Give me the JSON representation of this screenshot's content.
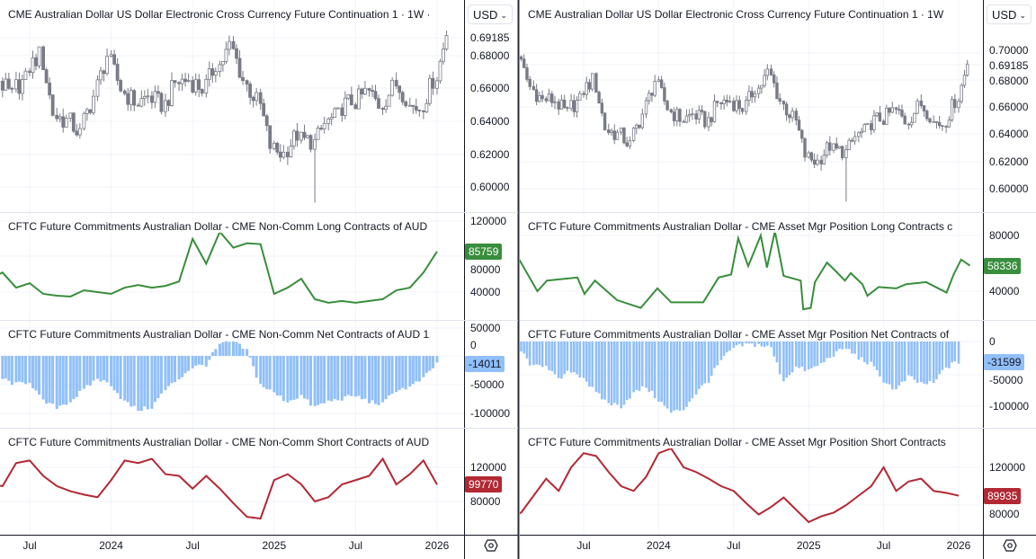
{
  "colors": {
    "candle": "#787b86",
    "long": "#388e3c",
    "net": "#90bff9",
    "short": "#b22833",
    "grid": "#f0f3fa"
  },
  "chart_data": [
    {
      "type": "candlestick+line+bar",
      "currency_button": "USD",
      "settings_icon": "gear-hexagon-icon",
      "time_labels": [
        {
          "label": "Jul",
          "date": "2023-07"
        },
        {
          "label": "2024",
          "date": "2024-01"
        },
        {
          "label": "Jul",
          "date": "2024-07"
        },
        {
          "label": "2025",
          "date": "2025-01"
        },
        {
          "label": "Jul",
          "date": "2025-07"
        },
        {
          "label": "2026",
          "date": "2026-01"
        }
      ],
      "price": {
        "title": "CME Australian Dollar US Dollar Electronic Cross Currency Future Continuation 1 · 1W ·",
        "ticks": [
          "0.69185",
          "0.68000",
          "0.66000",
          "0.64000",
          "0.62000",
          "0.60000"
        ],
        "last": 0.69185
      },
      "long": {
        "title": "CFTC Future Commitments Australian Dollar - CME Non-Comm Long Contracts of AUD",
        "ticks": [
          "120000",
          "80000",
          "40000"
        ],
        "last_label": "85759",
        "series": [
          [
            "2023-04",
            55000
          ],
          [
            "2023-05",
            62000
          ],
          [
            "2023-06",
            45000
          ],
          [
            "2023-07",
            50000
          ],
          [
            "2023-08",
            38000
          ],
          [
            "2023-09",
            36000
          ],
          [
            "2023-10",
            35000
          ],
          [
            "2023-11",
            42000
          ],
          [
            "2023-12",
            40000
          ],
          [
            "2024-01",
            38000
          ],
          [
            "2024-02",
            45000
          ],
          [
            "2024-03",
            48000
          ],
          [
            "2024-04",
            45000
          ],
          [
            "2024-05",
            47000
          ],
          [
            "2024-06",
            52000
          ],
          [
            "2024-07",
            100000
          ],
          [
            "2024-08",
            72000
          ],
          [
            "2024-09",
            108000
          ],
          [
            "2024-10",
            90000
          ],
          [
            "2024-11",
            95000
          ],
          [
            "2024-12",
            94000
          ],
          [
            "2025-01",
            38000
          ],
          [
            "2025-02",
            45000
          ],
          [
            "2025-03",
            55000
          ],
          [
            "2025-04",
            32000
          ],
          [
            "2025-05",
            28000
          ],
          [
            "2025-06",
            30000
          ],
          [
            "2025-07",
            28000
          ],
          [
            "2025-08",
            30000
          ],
          [
            "2025-09",
            32000
          ],
          [
            "2025-10",
            42000
          ],
          [
            "2025-11",
            45000
          ],
          [
            "2025-12",
            62000
          ],
          [
            "2026-01",
            85759
          ]
        ]
      },
      "net": {
        "title": "CFTC Future Commitments Australian Dollar - CME Non-Comm Net Contracts of AUD 1",
        "ticks": [
          "50000",
          "0",
          "-50000",
          "-100000"
        ],
        "last_label": "-14011",
        "series": [
          [
            "2023-04",
            -20000
          ],
          [
            "2023-05",
            -40000
          ],
          [
            "2023-06",
            -50000
          ],
          [
            "2023-07",
            -45000
          ],
          [
            "2023-08",
            -80000
          ],
          [
            "2023-09",
            -90000
          ],
          [
            "2023-10",
            -80000
          ],
          [
            "2023-11",
            -60000
          ],
          [
            "2023-12",
            -40000
          ],
          [
            "2024-01",
            -50000
          ],
          [
            "2024-02",
            -80000
          ],
          [
            "2024-03",
            -95000
          ],
          [
            "2024-04",
            -90000
          ],
          [
            "2024-05",
            -60000
          ],
          [
            "2024-06",
            -40000
          ],
          [
            "2024-07",
            -20000
          ],
          [
            "2024-08",
            -15000
          ],
          [
            "2024-09",
            20000
          ],
          [
            "2024-10",
            25000
          ],
          [
            "2024-11",
            10000
          ],
          [
            "2024-12",
            -50000
          ],
          [
            "2025-01",
            -65000
          ],
          [
            "2025-02",
            -80000
          ],
          [
            "2025-03",
            -70000
          ],
          [
            "2025-04",
            -90000
          ],
          [
            "2025-05",
            -80000
          ],
          [
            "2025-06",
            -75000
          ],
          [
            "2025-07",
            -70000
          ],
          [
            "2025-08",
            -80000
          ],
          [
            "2025-09",
            -85000
          ],
          [
            "2025-10",
            -60000
          ],
          [
            "2025-11",
            -55000
          ],
          [
            "2025-12",
            -40000
          ],
          [
            "2026-01",
            -14011
          ]
        ]
      },
      "short": {
        "title": "CFTC Future Commitments Australian Dollar - CME Non-Comm Short Contracts of AUD",
        "ticks": [
          "120000",
          "80000"
        ],
        "last_label": "99770",
        "series": [
          [
            "2023-04",
            100000
          ],
          [
            "2023-05",
            98000
          ],
          [
            "2023-06",
            125000
          ],
          [
            "2023-07",
            128000
          ],
          [
            "2023-08",
            110000
          ],
          [
            "2023-09",
            98000
          ],
          [
            "2023-10",
            92000
          ],
          [
            "2023-11",
            88000
          ],
          [
            "2023-12",
            85000
          ],
          [
            "2024-01",
            105000
          ],
          [
            "2024-02",
            128000
          ],
          [
            "2024-03",
            125000
          ],
          [
            "2024-04",
            130000
          ],
          [
            "2024-05",
            112000
          ],
          [
            "2024-06",
            110000
          ],
          [
            "2024-07",
            95000
          ],
          [
            "2024-08",
            110000
          ],
          [
            "2024-09",
            95000
          ],
          [
            "2024-10",
            78000
          ],
          [
            "2024-11",
            62000
          ],
          [
            "2024-12",
            60000
          ],
          [
            "2025-01",
            105000
          ],
          [
            "2025-02",
            112000
          ],
          [
            "2025-03",
            100000
          ],
          [
            "2025-04",
            80000
          ],
          [
            "2025-05",
            85000
          ],
          [
            "2025-06",
            100000
          ],
          [
            "2025-07",
            105000
          ],
          [
            "2025-08",
            110000
          ],
          [
            "2025-09",
            130000
          ],
          [
            "2025-10",
            100000
          ],
          [
            "2025-11",
            112000
          ],
          [
            "2025-12",
            128000
          ],
          [
            "2026-01",
            99770
          ]
        ]
      }
    },
    {
      "type": "candlestick+line+bar",
      "currency_button": "USD",
      "settings_icon": "gear-hexagon-icon",
      "time_labels": [
        {
          "label": "Jul",
          "date": "2023-07"
        },
        {
          "label": "2024",
          "date": "2024-01"
        },
        {
          "label": "Jul",
          "date": "2024-07"
        },
        {
          "label": "2025",
          "date": "2025-01"
        },
        {
          "label": "Jul",
          "date": "2025-07"
        },
        {
          "label": "2026",
          "date": "2026-01"
        }
      ],
      "price": {
        "title": "CME Australian Dollar US Dollar Electronic Cross Currency Future Continuation 1 · 1W",
        "ticks": [
          "0.70000",
          "0.69185",
          "0.68000",
          "0.66000",
          "0.64000",
          "0.62000",
          "0.60000"
        ],
        "last": 0.69185
      },
      "long": {
        "title": "CFTC Future Commitments Australian Dollar - CME Asset Mgr Position Long Contracts c",
        "ticks": [
          "80000",
          "40000"
        ],
        "last_label": "58336",
        "series": [
          [
            "2023-01-22",
            65000
          ],
          [
            "2023-03-10",
            40000
          ],
          [
            "2023-04-03",
            47600
          ],
          [
            "2023-06-16",
            49800
          ],
          [
            "2023-07-03",
            38000
          ],
          [
            "2023-07-28",
            47600
          ],
          [
            "2023-09-21",
            33600
          ],
          [
            "2023-11-18",
            28000
          ],
          [
            "2023-12-28",
            42000
          ],
          [
            "2024-01-31",
            32000
          ],
          [
            "2024-03-19",
            32000
          ],
          [
            "2024-04-18",
            32000
          ],
          [
            "2024-05-25",
            49800
          ],
          [
            "2024-06-25",
            52000
          ],
          [
            "2024-07-12",
            78000
          ],
          [
            "2024-08-06",
            58000
          ],
          [
            "2024-09-06",
            80000
          ],
          [
            "2024-09-21",
            57000
          ],
          [
            "2024-10-10",
            83000
          ],
          [
            "2024-11-01",
            51000
          ],
          [
            "2024-12-12",
            47600
          ],
          [
            "2024-12-18",
            27000
          ],
          [
            "2025-01-06",
            28000
          ],
          [
            "2025-01-16",
            46500
          ],
          [
            "2025-02-15",
            60500
          ],
          [
            "2025-03-04",
            55000
          ],
          [
            "2025-03-28",
            47600
          ],
          [
            "2025-04-12",
            53000
          ],
          [
            "2025-05-10",
            45000
          ],
          [
            "2025-05-22",
            36700
          ],
          [
            "2025-06-19",
            43000
          ],
          [
            "2025-08-01",
            42000
          ],
          [
            "2025-08-25",
            45000
          ],
          [
            "2025-10-13",
            46500
          ],
          [
            "2025-12-02",
            39000
          ],
          [
            "2025-12-19",
            52000
          ],
          [
            "2026-01-07",
            62700
          ],
          [
            "2026-01-28",
            58336
          ]
        ]
      },
      "net": {
        "title": "CFTC Future Commitments Australian Dollar - CME Asset Mgr Position Net Contracts of",
        "ticks": [
          "0",
          "-50000",
          "-100000"
        ],
        "last_label": "-31599",
        "series": [
          [
            "2023-01",
            0
          ],
          [
            "2023-02",
            -15000
          ],
          [
            "2023-03",
            -40000
          ],
          [
            "2023-04",
            -35000
          ],
          [
            "2023-05",
            -60000
          ],
          [
            "2023-06",
            -45000
          ],
          [
            "2023-07",
            -55000
          ],
          [
            "2023-08",
            -80000
          ],
          [
            "2023-09",
            -95000
          ],
          [
            "2023-10",
            -100000
          ],
          [
            "2023-11",
            -80000
          ],
          [
            "2023-12",
            -70000
          ],
          [
            "2024-01",
            -90000
          ],
          [
            "2024-02",
            -110000
          ],
          [
            "2024-03",
            -105000
          ],
          [
            "2024-04",
            -80000
          ],
          [
            "2024-05",
            -60000
          ],
          [
            "2024-06",
            -30000
          ],
          [
            "2024-07",
            -10000
          ],
          [
            "2024-08",
            -5000
          ],
          [
            "2024-09",
            -5000
          ],
          [
            "2024-10",
            -10000
          ],
          [
            "2024-11",
            -60000
          ],
          [
            "2024-12",
            -40000
          ],
          [
            "2025-01",
            -45000
          ],
          [
            "2025-02",
            -35000
          ],
          [
            "2025-03",
            -20000
          ],
          [
            "2025-04",
            -10000
          ],
          [
            "2025-05",
            -25000
          ],
          [
            "2025-06",
            -35000
          ],
          [
            "2025-07",
            -60000
          ],
          [
            "2025-08",
            -75000
          ],
          [
            "2025-09",
            -55000
          ],
          [
            "2025-10",
            -65000
          ],
          [
            "2025-11",
            -65000
          ],
          [
            "2025-12",
            -40000
          ],
          [
            "2026-01",
            -31599
          ]
        ]
      },
      "short": {
        "title": "CFTC Future Commitments Australian Dollar - CME Asset Mgr Position Short Contracts",
        "ticks": [
          "120000",
          "80000"
        ],
        "last_label": "89935",
        "series": [
          [
            "2023-01",
            67000
          ],
          [
            "2023-02",
            72000
          ],
          [
            "2023-03",
            90000
          ],
          [
            "2023-04",
            108000
          ],
          [
            "2023-05",
            95000
          ],
          [
            "2023-06",
            120000
          ],
          [
            "2023-07",
            135000
          ],
          [
            "2023-08",
            132000
          ],
          [
            "2023-09",
            115000
          ],
          [
            "2023-10",
            100000
          ],
          [
            "2023-11",
            95000
          ],
          [
            "2023-12",
            110000
          ],
          [
            "2024-01",
            135000
          ],
          [
            "2024-02",
            140000
          ],
          [
            "2024-03",
            120000
          ],
          [
            "2024-04",
            115000
          ],
          [
            "2024-05",
            108000
          ],
          [
            "2024-06",
            100000
          ],
          [
            "2024-07",
            95000
          ],
          [
            "2024-08",
            82000
          ],
          [
            "2024-09",
            70000
          ],
          [
            "2024-10",
            78000
          ],
          [
            "2024-11",
            88000
          ],
          [
            "2024-12",
            75000
          ],
          [
            "2025-01",
            62000
          ],
          [
            "2025-02",
            68000
          ],
          [
            "2025-03",
            72000
          ],
          [
            "2025-04",
            80000
          ],
          [
            "2025-05",
            90000
          ],
          [
            "2025-06",
            100000
          ],
          [
            "2025-07",
            120000
          ],
          [
            "2025-08",
            95000
          ],
          [
            "2025-09",
            105000
          ],
          [
            "2025-10",
            108000
          ],
          [
            "2025-11",
            95000
          ],
          [
            "2025-12",
            93000
          ],
          [
            "2026-01",
            89935
          ]
        ]
      }
    }
  ],
  "price_closes": [
    [
      "2023-01",
      0.7
    ],
    [
      "2023-02",
      0.675
    ],
    [
      "2023-03",
      0.665
    ],
    [
      "2023-04",
      0.665
    ],
    [
      "2023-05",
      0.655
    ],
    [
      "2023-06",
      0.665
    ],
    [
      "2023-07",
      0.68
    ],
    [
      "2023-08",
      0.645
    ],
    [
      "2023-09",
      0.64
    ],
    [
      "2023-10",
      0.632
    ],
    [
      "2023-11",
      0.655
    ],
    [
      "2023-12",
      0.68
    ],
    [
      "2024-01",
      0.66
    ],
    [
      "2024-02",
      0.652
    ],
    [
      "2024-03",
      0.655
    ],
    [
      "2024-04",
      0.65
    ],
    [
      "2024-05",
      0.663
    ],
    [
      "2024-06",
      0.665
    ],
    [
      "2024-07",
      0.66
    ],
    [
      "2024-08",
      0.675
    ],
    [
      "2024-09",
      0.685
    ],
    [
      "2024-10",
      0.665
    ],
    [
      "2024-11",
      0.652
    ],
    [
      "2024-12",
      0.625
    ],
    [
      "2025-01",
      0.62
    ],
    [
      "2025-02",
      0.632
    ],
    [
      "2025-03",
      0.628
    ],
    [
      "2025-04",
      0.638
    ],
    [
      "2025-05",
      0.643
    ],
    [
      "2025-06",
      0.652
    ],
    [
      "2025-07",
      0.657
    ],
    [
      "2025-08",
      0.65
    ],
    [
      "2025-09",
      0.66
    ],
    [
      "2025-10",
      0.655
    ],
    [
      "2025-11",
      0.648
    ],
    [
      "2025-12",
      0.665
    ],
    [
      "2026-01",
      0.69185
    ]
  ]
}
